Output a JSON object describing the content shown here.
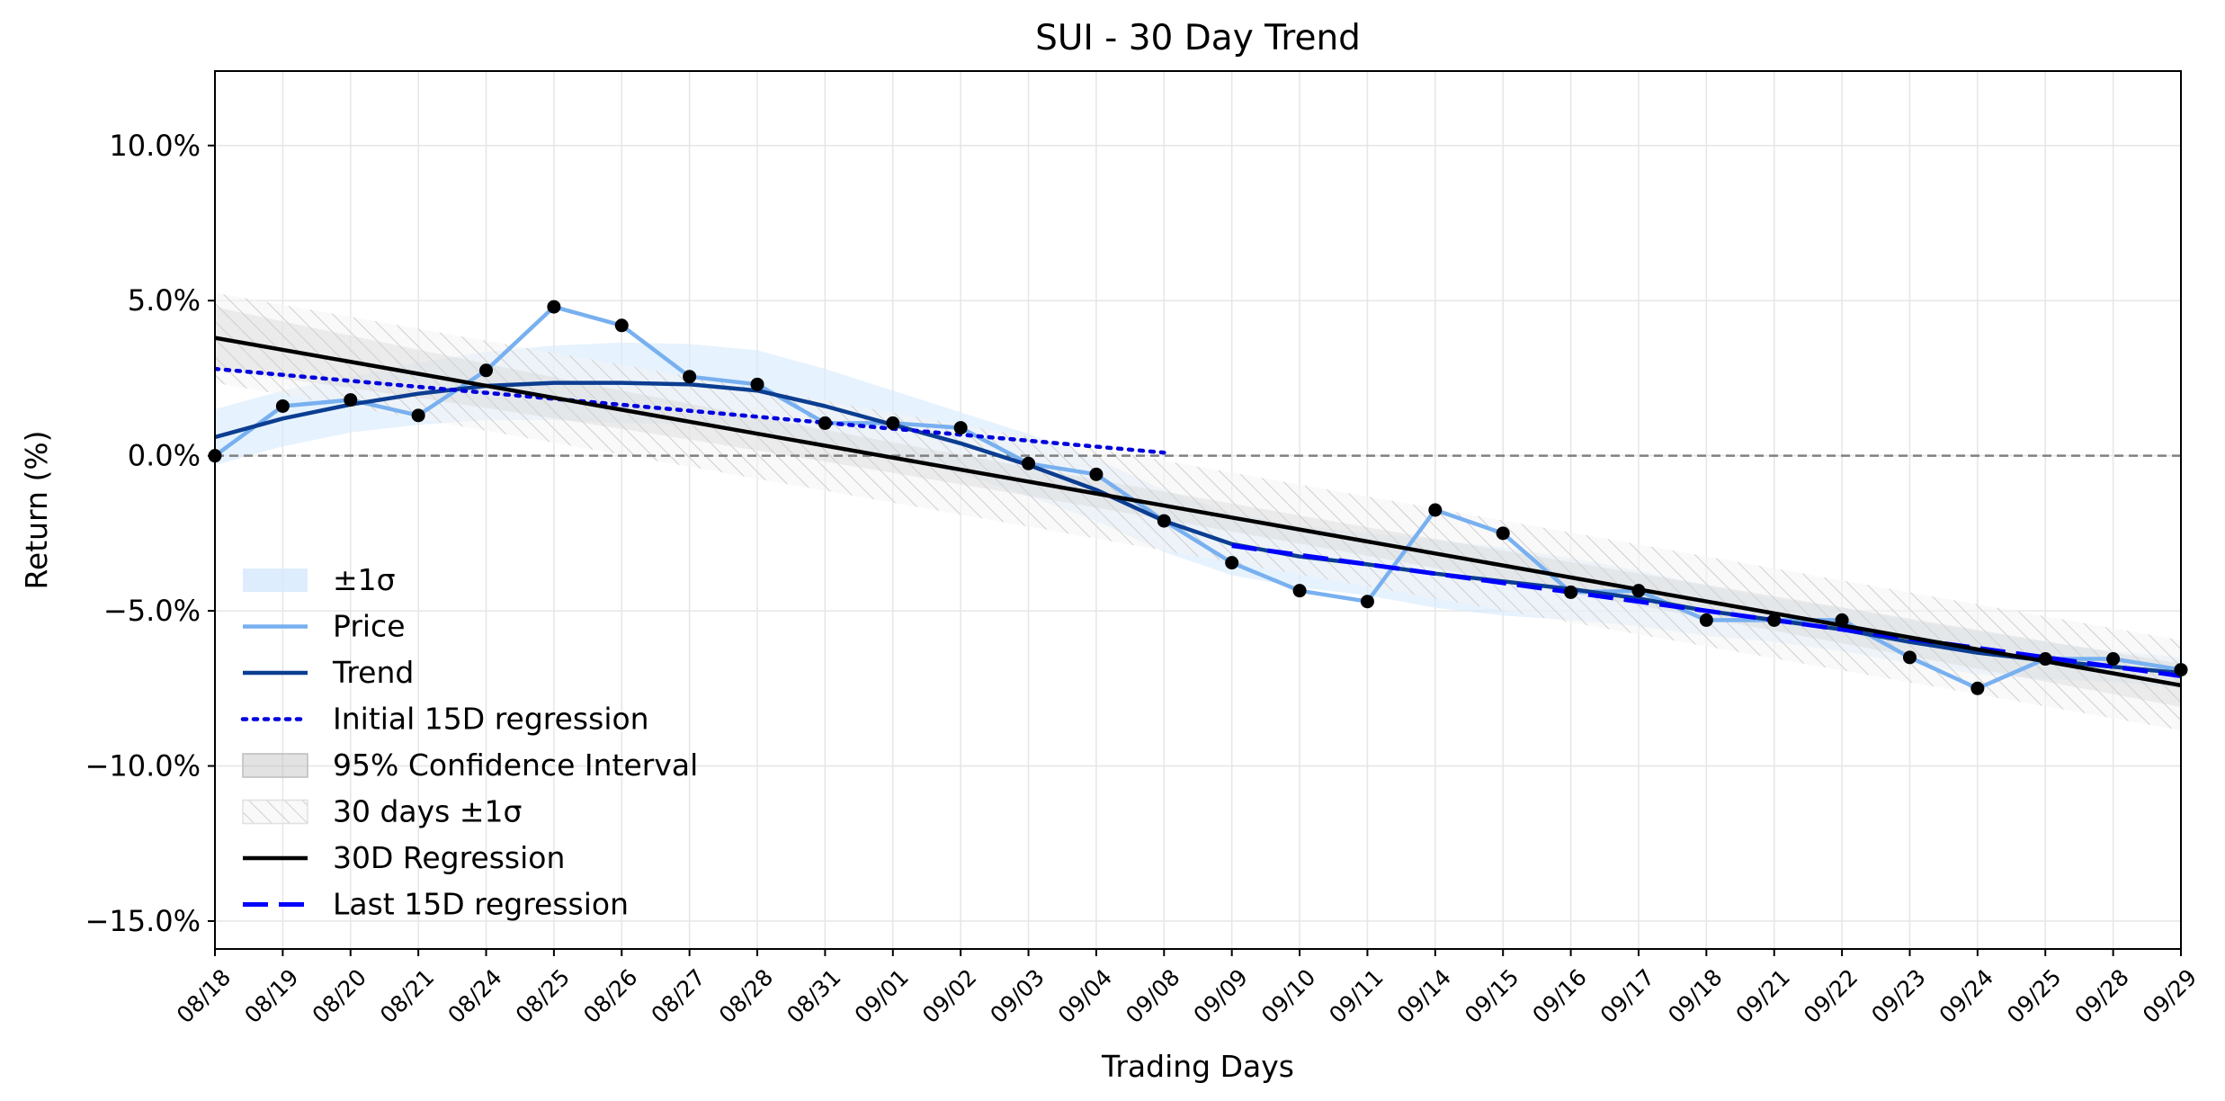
{
  "chart_data": {
    "type": "line",
    "title": "SUI - 30 Day Trend",
    "xlabel": "Trading Days",
    "ylabel": "Return (%)",
    "ylim": [
      -15.9,
      12.4
    ],
    "yticks": [
      10,
      5,
      0,
      -5,
      -10,
      -15
    ],
    "ytick_labels": [
      "10.0%",
      "5.0%",
      "0.0%",
      "−5.0%",
      "−10.0%",
      "−15.0%"
    ],
    "grid": true,
    "legend_position": "lower-left",
    "categories": [
      "08/18",
      "08/19",
      "08/20",
      "08/21",
      "08/24",
      "08/25",
      "08/26",
      "08/27",
      "08/28",
      "08/31",
      "09/01",
      "09/02",
      "09/03",
      "09/04",
      "09/08",
      "09/09",
      "09/10",
      "09/11",
      "09/14",
      "09/15",
      "09/16",
      "09/17",
      "09/18",
      "09/21",
      "09/22",
      "09/23",
      "09/24",
      "09/25",
      "09/28",
      "09/29"
    ],
    "series": [
      {
        "name": "Price",
        "color": "#78b0f0",
        "values": [
          0.0,
          1.6,
          1.8,
          1.3,
          2.75,
          4.8,
          4.2,
          2.55,
          2.3,
          1.05,
          1.05,
          0.9,
          -0.25,
          -0.6,
          -2.1,
          -3.45,
          -4.35,
          -4.7,
          -1.75,
          -2.5,
          -4.4,
          -4.35,
          -5.3,
          -5.3,
          -5.3,
          -6.5,
          -7.5,
          -6.55,
          -6.55,
          -6.9
        ]
      },
      {
        "name": "Trend",
        "color": "#0b3d91",
        "values": [
          0.6,
          1.2,
          1.65,
          2.0,
          2.25,
          2.35,
          2.35,
          2.3,
          2.1,
          1.6,
          1.0,
          0.4,
          -0.3,
          -1.1,
          -2.1,
          -2.85,
          -3.25,
          -3.5,
          -3.8,
          -4.05,
          -4.3,
          -4.6,
          -5.0,
          -5.3,
          -5.6,
          -6.0,
          -6.35,
          -6.6,
          -6.8,
          -7.0
        ]
      },
      {
        "name": "Initial 15D regression",
        "color": "#0000dd",
        "style": "dotted",
        "x_range": [
          0,
          14
        ],
        "y_range": [
          2.8,
          0.1
        ]
      },
      {
        "name": "30D Regression",
        "color": "#000000",
        "x_range": [
          0,
          29
        ],
        "y_range": [
          3.8,
          -7.4
        ]
      },
      {
        "name": "Last 15D regression",
        "color": "#0000ff",
        "style": "dashed",
        "x_range": [
          15,
          29
        ],
        "y_range": [
          -2.9,
          -7.1
        ]
      }
    ],
    "bands": [
      {
        "name": "±1σ",
        "color": "#d6e9fc",
        "around": "Trend",
        "halfwidth": [
          0.9,
          0.9,
          0.9,
          1.0,
          1.1,
          1.2,
          1.3,
          1.3,
          1.3,
          1.2,
          1.1,
          1.0,
          1.0,
          1.0,
          1.0,
          1.0,
          1.0,
          1.0,
          1.1,
          1.1,
          1.0,
          0.9,
          0.8,
          0.7,
          0.7,
          0.7,
          0.7,
          0.6,
          0.5,
          0.5
        ]
      },
      {
        "name": "95% Confidence Interval",
        "color": "#bfbfbf",
        "around": "30D Regression",
        "halfwidth_ends": [
          1.0,
          0.7
        ],
        "halfwidth_mid": 0.45
      },
      {
        "name": "30 days ±1σ",
        "color": "#e6e6e6",
        "pattern": "hatch",
        "around": "30D Regression",
        "halfwidth": 1.45
      }
    ],
    "reference_line": {
      "y": 0,
      "style": "dashed",
      "color": "#808080"
    },
    "marker_color": "#000000",
    "legend": [
      {
        "label": "±1σ",
        "kind": "patch-blue"
      },
      {
        "label": "Price",
        "kind": "line-price"
      },
      {
        "label": "Trend",
        "kind": "line-trend"
      },
      {
        "label": "Initial 15D regression",
        "kind": "line-dotted"
      },
      {
        "label": "95% Confidence Interval",
        "kind": "patch-gray"
      },
      {
        "label": "30 days ±1σ",
        "kind": "patch-hatch"
      },
      {
        "label": "30D Regression",
        "kind": "line-black"
      },
      {
        "label": "Last 15D regression",
        "kind": "line-dashed"
      }
    ]
  }
}
